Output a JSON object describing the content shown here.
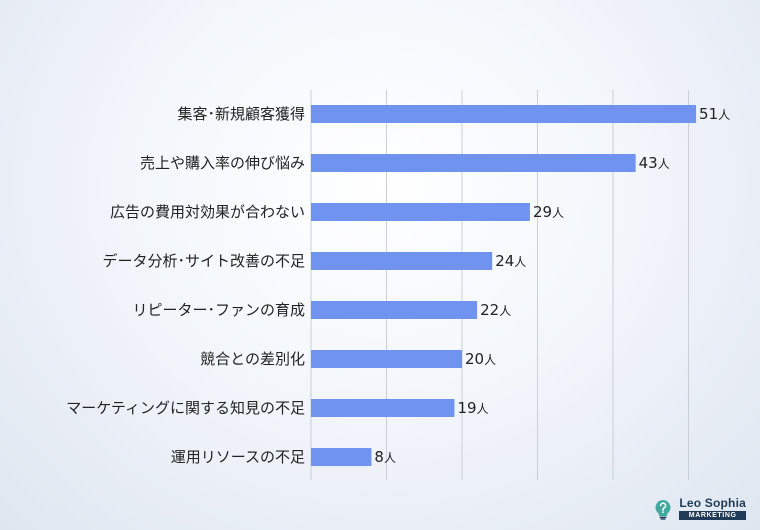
{
  "chart_data": {
    "type": "bar",
    "orientation": "horizontal",
    "categories": [
      "集客･新規顧客獲得",
      "売上や購入率の伸び悩み",
      "広告の費用対効果が合わない",
      "データ分析･サイト改善の不足",
      "リピーター･ファンの育成",
      "競合との差別化",
      "マーケティングに関する知見の不足",
      "運用リソースの不足"
    ],
    "values": [
      51,
      43,
      29,
      24,
      22,
      20,
      19,
      8
    ],
    "value_unit": "人",
    "xlim": [
      0,
      55
    ],
    "grid": true,
    "bar_color": "#7093f0"
  },
  "logo": {
    "name": "Leo Sophia",
    "tagline": "MARKETING",
    "icon": "lightbulb-question-icon",
    "colors": {
      "navy": "#1f3b57",
      "teal": "#3fa9a0"
    }
  }
}
